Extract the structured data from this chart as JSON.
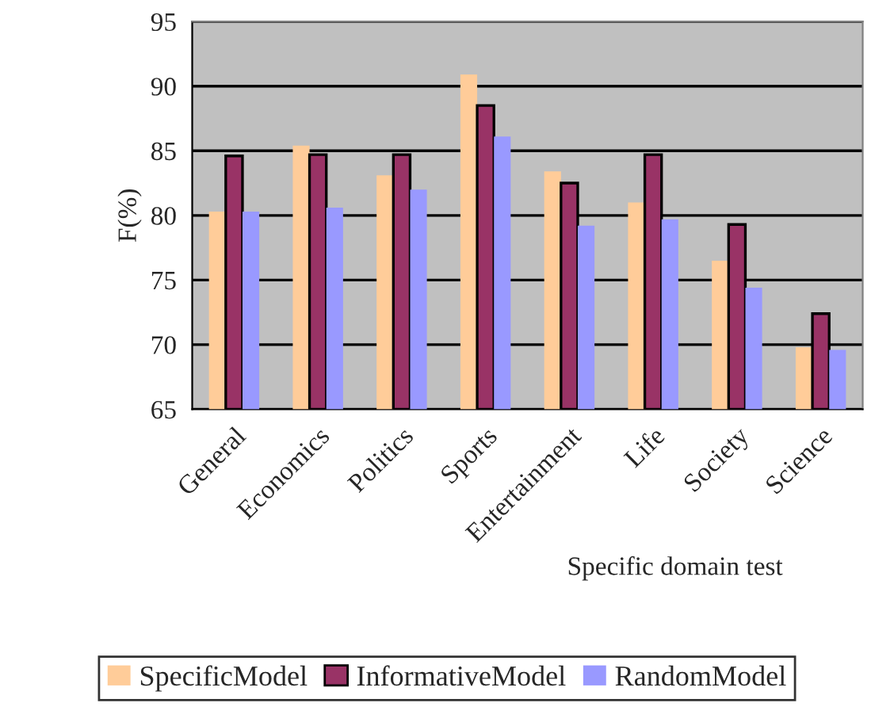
{
  "chart_data": {
    "type": "bar",
    "xlabel": "Specific domain test",
    "ylabel": "F(%)",
    "categories": [
      "General",
      "Economics",
      "Politics",
      "Sports",
      "Entertainment",
      "Life",
      "Society",
      "Science"
    ],
    "series": [
      {
        "name": "SpecificModel",
        "color": "#ffcc99",
        "values": [
          80.3,
          85.4,
          83.1,
          90.9,
          83.4,
          81.0,
          76.5,
          69.8
        ]
      },
      {
        "name": "InformativeModel",
        "color": "#993366",
        "values": [
          84.6,
          84.7,
          84.7,
          88.5,
          82.5,
          84.7,
          79.3,
          72.4
        ]
      },
      {
        "name": "RandomModel",
        "color": "#9999ff",
        "values": [
          80.3,
          80.6,
          82.0,
          86.1,
          79.2,
          79.7,
          74.4,
          69.6
        ]
      }
    ],
    "ylim": [
      65,
      95
    ],
    "yticks": [
      65,
      70,
      75,
      80,
      85,
      90,
      95
    ],
    "grid": "y",
    "legend": "bottom"
  }
}
